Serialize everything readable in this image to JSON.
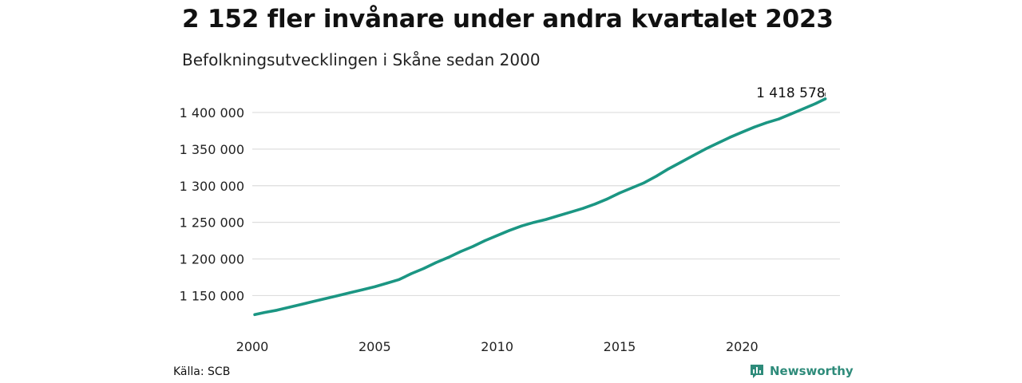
{
  "header": {
    "title": "2 152 fler invånare under andra kvartalet 2023",
    "subtitle": "Befolkningsutvecklingen i Skåne sedan 2000"
  },
  "footer": {
    "source": "Källa: SCB",
    "brand": "Newsworthy",
    "brand_icon": "newsworthy-logo-icon"
  },
  "colors": {
    "line": "#1b9683",
    "grid": "#dddddd",
    "brand": "#2e8b7a"
  },
  "chart_data": {
    "type": "line",
    "title": "2 152 fler invånare under andra kvartalet 2023",
    "subtitle": "Befolkningsutvecklingen i Skåne sedan 2000",
    "xlabel": "",
    "ylabel": "",
    "xlim": [
      2000,
      2024
    ],
    "ylim": [
      1120000,
      1425000
    ],
    "grid": true,
    "x_ticks": [
      2000,
      2005,
      2010,
      2015,
      2020
    ],
    "x_tick_labels": [
      "2000",
      "2005",
      "2010",
      "2015",
      "2020"
    ],
    "y_ticks": [
      1150000,
      1200000,
      1250000,
      1300000,
      1350000,
      1400000
    ],
    "y_tick_labels": [
      "1 150 000",
      "1 200 000",
      "1 250 000",
      "1 300 000",
      "1 350 000",
      "1 400 000"
    ],
    "end_label": "1 418 578",
    "series": [
      {
        "x": [
          2000.1,
          2000.5,
          2001.0,
          2001.5,
          2002.0,
          2002.5,
          2003.0,
          2003.5,
          2004.0,
          2004.5,
          2005.0,
          2005.5,
          2006.0,
          2006.5,
          2007.0,
          2007.5,
          2008.0,
          2008.5,
          2009.0,
          2009.5,
          2010.0,
          2010.5,
          2011.0,
          2011.5,
          2012.0,
          2012.5,
          2013.0,
          2013.5,
          2014.0,
          2014.5,
          2015.0,
          2015.5,
          2016.0,
          2016.5,
          2017.0,
          2017.5,
          2018.0,
          2018.5,
          2019.0,
          2019.5,
          2020.0,
          2020.5,
          2021.0,
          2021.5,
          2022.0,
          2022.5,
          2023.0,
          2023.4
        ],
        "values": [
          1124000,
          1127000,
          1130000,
          1134000,
          1138000,
          1142000,
          1146000,
          1150000,
          1154000,
          1158000,
          1162000,
          1167000,
          1172000,
          1180000,
          1187000,
          1195000,
          1202000,
          1210000,
          1217000,
          1225000,
          1232000,
          1239000,
          1245000,
          1250000,
          1254000,
          1259000,
          1264000,
          1269000,
          1275000,
          1282000,
          1290000,
          1297000,
          1304000,
          1313000,
          1323000,
          1332000,
          1341000,
          1350000,
          1358000,
          1366000,
          1373000,
          1380000,
          1386000,
          1391000,
          1398000,
          1405000,
          1412000,
          1418578
        ]
      }
    ]
  }
}
